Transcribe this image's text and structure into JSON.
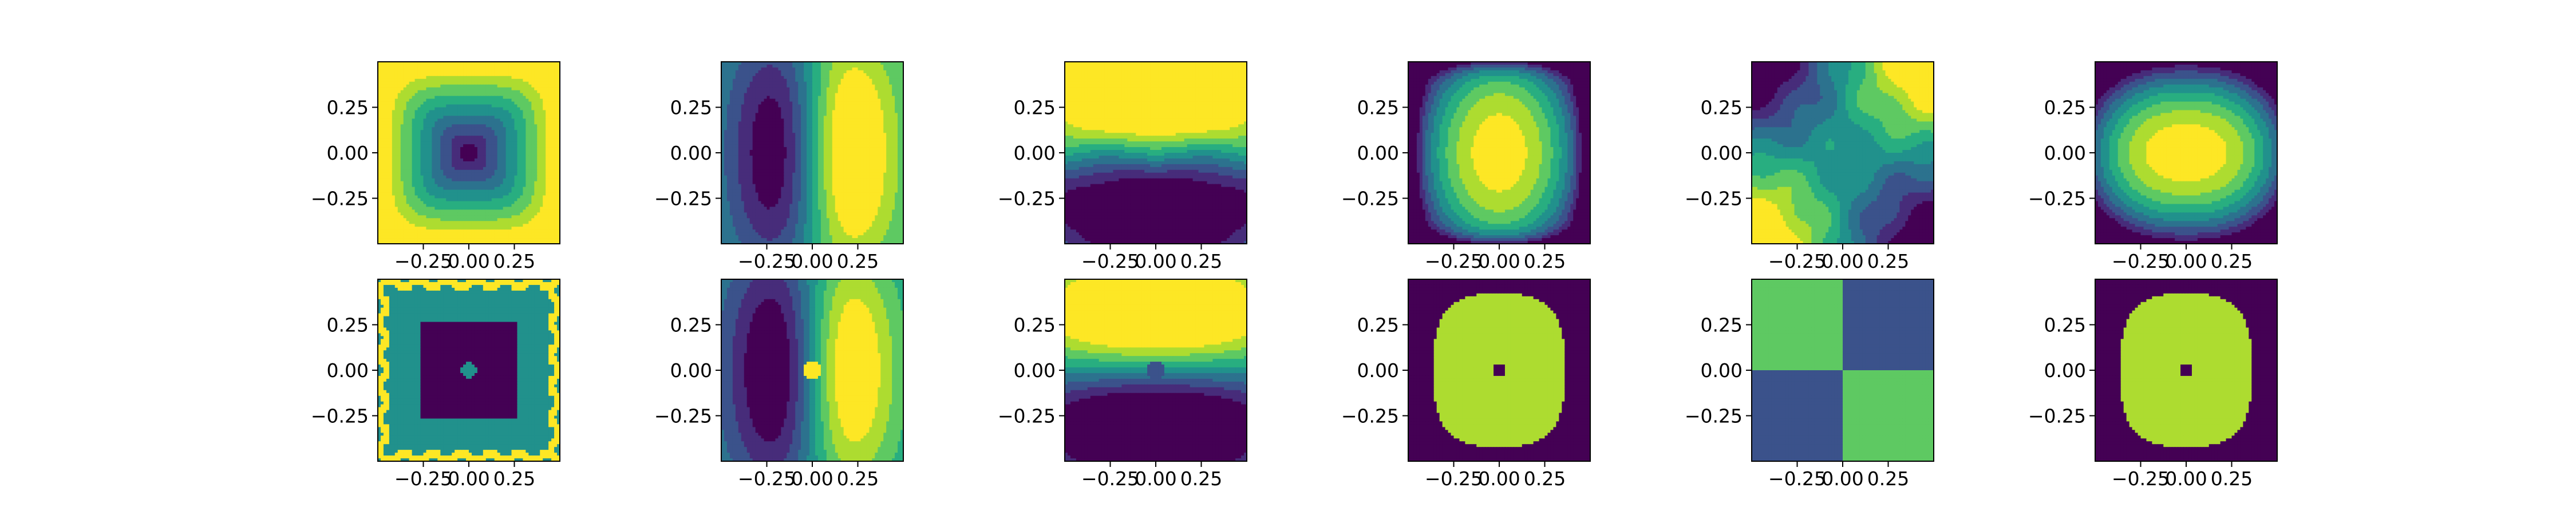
{
  "figure": {
    "layout": "2 rows x 6 columns of contour subplots",
    "colormap": "viridis",
    "palette": [
      "#440154",
      "#472c7a",
      "#3b528b",
      "#2c728e",
      "#21918c",
      "#28ae80",
      "#5ec962",
      "#addc30",
      "#fde725"
    ]
  },
  "chart_data": [
    {
      "type": "heatmap",
      "pattern": "bowl",
      "row": 1,
      "col": 1,
      "xlim": [
        -0.5,
        0.5
      ],
      "ylim": [
        -0.5,
        0.5
      ],
      "xticks": [
        "−0.25",
        "0.00",
        "0.25"
      ],
      "yticks": [
        "0.25",
        "0.00",
        "−0.25"
      ]
    },
    {
      "type": "heatmap",
      "pattern": "dipole-x",
      "row": 1,
      "col": 2,
      "xlim": [
        -0.5,
        0.5
      ],
      "ylim": [
        -0.5,
        0.5
      ],
      "xticks": [
        "−0.25",
        "0.00",
        "0.25"
      ],
      "yticks": [
        "0.25",
        "0.00",
        "−0.25"
      ]
    },
    {
      "type": "heatmap",
      "pattern": "dipole-y",
      "row": 1,
      "col": 3,
      "xlim": [
        -0.5,
        0.5
      ],
      "ylim": [
        -0.5,
        0.5
      ],
      "xticks": [
        "−0.25",
        "0.00",
        "0.25"
      ],
      "yticks": [
        "0.25",
        "0.00",
        "−0.25"
      ]
    },
    {
      "type": "heatmap",
      "pattern": "dome-tall",
      "row": 1,
      "col": 4,
      "xlim": [
        -0.5,
        0.5
      ],
      "ylim": [
        -0.5,
        0.5
      ],
      "xticks": [
        "−0.25",
        "0.00",
        "0.25"
      ],
      "yticks": [
        "0.25",
        "0.00",
        "−0.25"
      ]
    },
    {
      "type": "heatmap",
      "pattern": "quadrupole",
      "row": 1,
      "col": 5,
      "xlim": [
        -0.5,
        0.5
      ],
      "ylim": [
        -0.5,
        0.5
      ],
      "xticks": [
        "−0.25",
        "0.00",
        "0.25"
      ],
      "yticks": [
        "0.25",
        "0.00",
        "−0.25"
      ]
    },
    {
      "type": "heatmap",
      "pattern": "dome-wide",
      "row": 1,
      "col": 6,
      "xlim": [
        -0.5,
        0.5
      ],
      "ylim": [
        -0.5,
        0.5
      ],
      "xticks": [
        "−0.25",
        "0.00",
        "0.25"
      ],
      "yticks": [
        "0.25",
        "0.00",
        "−0.25"
      ]
    },
    {
      "type": "heatmap",
      "pattern": "bowl-noisy",
      "row": 2,
      "col": 1,
      "xlim": [
        -0.5,
        0.5
      ],
      "ylim": [
        -0.5,
        0.5
      ],
      "xticks": [
        "−0.25",
        "0.00",
        "0.25"
      ],
      "yticks": [
        "0.25",
        "0.00",
        "−0.25"
      ]
    },
    {
      "type": "heatmap",
      "pattern": "dipole-x-noisy",
      "row": 2,
      "col": 2,
      "xlim": [
        -0.5,
        0.5
      ],
      "ylim": [
        -0.5,
        0.5
      ],
      "xticks": [
        "−0.25",
        "0.00",
        "0.25"
      ],
      "yticks": [
        "0.25",
        "0.00",
        "−0.25"
      ]
    },
    {
      "type": "heatmap",
      "pattern": "dipole-y-noisy",
      "row": 2,
      "col": 3,
      "xlim": [
        -0.5,
        0.5
      ],
      "ylim": [
        -0.5,
        0.5
      ],
      "xticks": [
        "−0.25",
        "0.00",
        "0.25"
      ],
      "yticks": [
        "0.25",
        "0.00",
        "−0.25"
      ]
    },
    {
      "type": "heatmap",
      "pattern": "binary-dome",
      "row": 2,
      "col": 4,
      "xlim": [
        -0.5,
        0.5
      ],
      "ylim": [
        -0.5,
        0.5
      ],
      "xticks": [
        "−0.25",
        "0.00",
        "0.25"
      ],
      "yticks": [
        "0.25",
        "0.00",
        "−0.25"
      ]
    },
    {
      "type": "heatmap",
      "pattern": "binary-quadrant",
      "row": 2,
      "col": 5,
      "xlim": [
        -0.5,
        0.5
      ],
      "ylim": [
        -0.5,
        0.5
      ],
      "xticks": [
        "−0.25",
        "0.00",
        "0.25"
      ],
      "yticks": [
        "0.25",
        "0.00",
        "−0.25"
      ]
    },
    {
      "type": "heatmap",
      "pattern": "binary-dome",
      "row": 2,
      "col": 6,
      "xlim": [
        -0.5,
        0.5
      ],
      "ylim": [
        -0.5,
        0.5
      ],
      "xticks": [
        "−0.25",
        "0.00",
        "0.25"
      ],
      "yticks": [
        "0.25",
        "0.00",
        "−0.25"
      ]
    }
  ]
}
